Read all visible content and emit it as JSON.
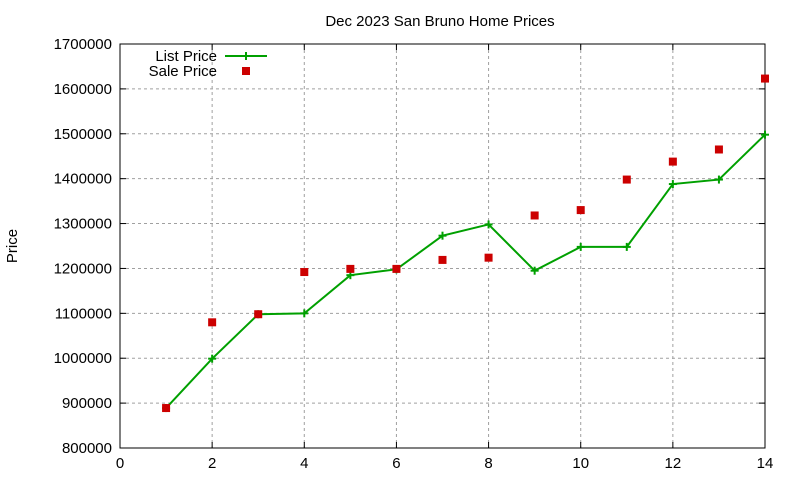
{
  "chart_data": {
    "type": "line",
    "title": "Dec 2023 San Bruno Home Prices",
    "xlabel": "",
    "ylabel": "Price",
    "xlim": [
      0,
      14
    ],
    "ylim": [
      800000,
      1700000
    ],
    "x_ticks": [
      0,
      2,
      4,
      6,
      8,
      10,
      12,
      14
    ],
    "y_ticks": [
      800000,
      900000,
      1000000,
      1100000,
      1200000,
      1300000,
      1400000,
      1500000,
      1600000,
      1700000
    ],
    "grid": true,
    "legend_position": "top-left",
    "x": [
      1,
      2,
      3,
      4,
      5,
      6,
      7,
      8,
      9,
      10,
      11,
      12,
      13,
      14
    ],
    "series": [
      {
        "name": "List Price",
        "style": "linespoints",
        "color": "#00a000",
        "values": [
          889000,
          999000,
          1098000,
          1100000,
          1185000,
          1198000,
          1273000,
          1298000,
          1195000,
          1248000,
          1248000,
          1388000,
          1398000,
          1498000
        ]
      },
      {
        "name": "Sale Price",
        "style": "points",
        "color": "#cc0000",
        "values": [
          889000,
          1080000,
          1098000,
          1192000,
          1199000,
          1199000,
          1219000,
          1224000,
          1318000,
          1330000,
          1398000,
          1438000,
          1465000,
          1623000
        ]
      }
    ]
  }
}
